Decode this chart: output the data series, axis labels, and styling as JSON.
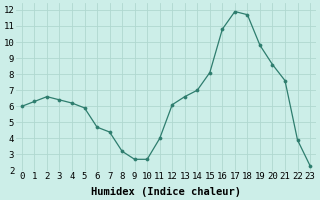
{
  "xlabel": "Humidex (Indice chaleur)",
  "x": [
    0,
    1,
    2,
    3,
    4,
    5,
    6,
    7,
    8,
    9,
    10,
    11,
    12,
    13,
    14,
    15,
    16,
    17,
    18,
    19,
    20,
    21,
    22,
    23
  ],
  "y": [
    6.0,
    6.3,
    6.6,
    6.4,
    6.2,
    5.9,
    4.7,
    4.4,
    3.2,
    2.7,
    2.7,
    4.0,
    6.1,
    6.6,
    7.0,
    8.1,
    10.8,
    11.9,
    11.7,
    9.8,
    8.6,
    7.6,
    3.9,
    2.3
  ],
  "xlim": [
    -0.5,
    23.5
  ],
  "ylim": [
    2,
    12.4
  ],
  "yticks": [
    2,
    3,
    4,
    5,
    6,
    7,
    8,
    9,
    10,
    11,
    12
  ],
  "xticks": [
    0,
    1,
    2,
    3,
    4,
    5,
    6,
    7,
    8,
    9,
    10,
    11,
    12,
    13,
    14,
    15,
    16,
    17,
    18,
    19,
    20,
    21,
    22,
    23
  ],
  "line_color": "#2e7d6e",
  "marker_color": "#2e7d6e",
  "bg_color": "#cceee8",
  "grid_color": "#b0d8d0",
  "tick_label_fontsize": 6.5,
  "xlabel_fontsize": 7.5
}
